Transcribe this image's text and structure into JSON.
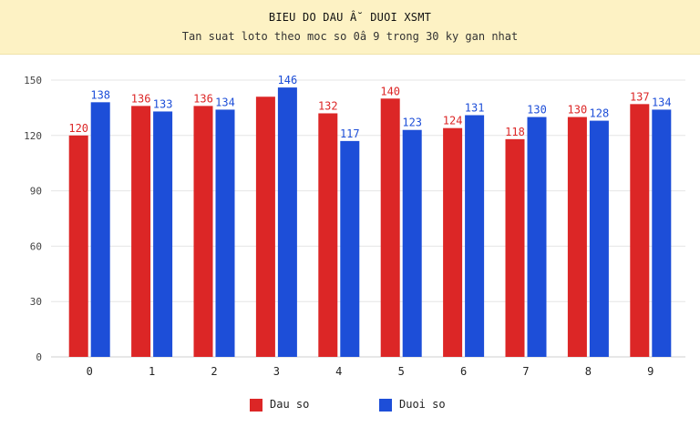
{
  "header": {
    "title": "BIEU DO DAU Â˘ DUOI XSMT",
    "subtitle": "Tan suat loto theo moc so 0â  9 trong 30 ky gan nhat"
  },
  "colors": {
    "header_bg": "#fdf2c4",
    "series_dau": "#dc2626",
    "series_duoi": "#1d4ed8",
    "grid": "#e6e6e6"
  },
  "chart_data": {
    "type": "bar",
    "categories": [
      "0",
      "1",
      "2",
      "3",
      "4",
      "5",
      "6",
      "7",
      "8",
      "9"
    ],
    "series": [
      {
        "name": "Dau so",
        "color": "#dc2626",
        "values": [
          120,
          136,
          136,
          141,
          132,
          140,
          124,
          118,
          130,
          137
        ],
        "labels": [
          "120",
          "136",
          "136",
          "",
          "132",
          "140",
          "124",
          "118",
          "130",
          "137"
        ]
      },
      {
        "name": "Duoi so",
        "color": "#1d4ed8",
        "values": [
          138,
          133,
          134,
          146,
          117,
          123,
          131,
          130,
          128,
          134
        ],
        "labels": [
          "138",
          "133",
          "134",
          "146",
          "117",
          "123",
          "131",
          "130",
          "128",
          "134"
        ]
      }
    ],
    "yticks": [
      0,
      30,
      60,
      90,
      120,
      150
    ],
    "ylim": [
      0,
      150
    ],
    "grid": true,
    "legend_position": "bottom"
  }
}
